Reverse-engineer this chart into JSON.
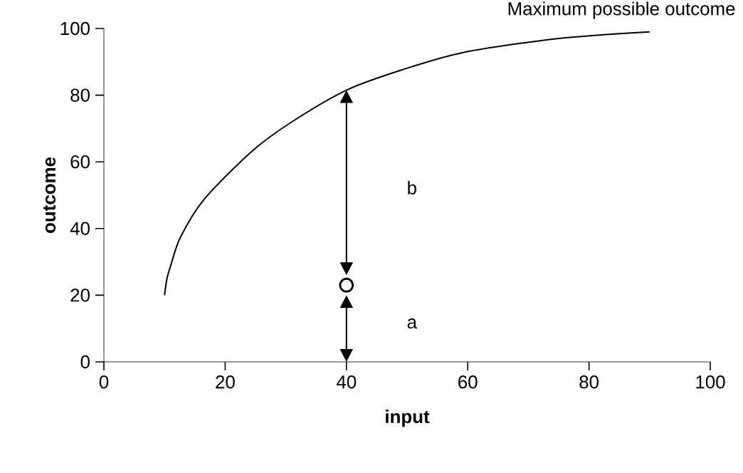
{
  "chart_data": {
    "type": "line",
    "xlabel": "input",
    "ylabel": "outcome",
    "xlim": [
      0,
      100
    ],
    "ylim": [
      0,
      100
    ],
    "xticks": [
      0,
      20,
      40,
      60,
      80,
      100
    ],
    "yticks": [
      0,
      20,
      40,
      60,
      80,
      100
    ],
    "marker": "circle",
    "series": [
      {
        "type": "line",
        "marker": "none",
        "color": "#000000",
        "x": [
          10,
          10.4,
          11,
          12.6,
          16.5,
          24.3,
          31,
          40,
          49,
          59.5,
          75,
          90
        ],
        "values": [
          20,
          25,
          28.8,
          37.3,
          48.7,
          63,
          72,
          81.5,
          87.5,
          92.9,
          97,
          99
        ]
      },
      {
        "type": "scatter",
        "color": "#000000",
        "x": [
          40
        ],
        "values": [
          23
        ]
      }
    ],
    "annotations": [
      "Maximum possible outcome",
      "b",
      "a"
    ]
  }
}
